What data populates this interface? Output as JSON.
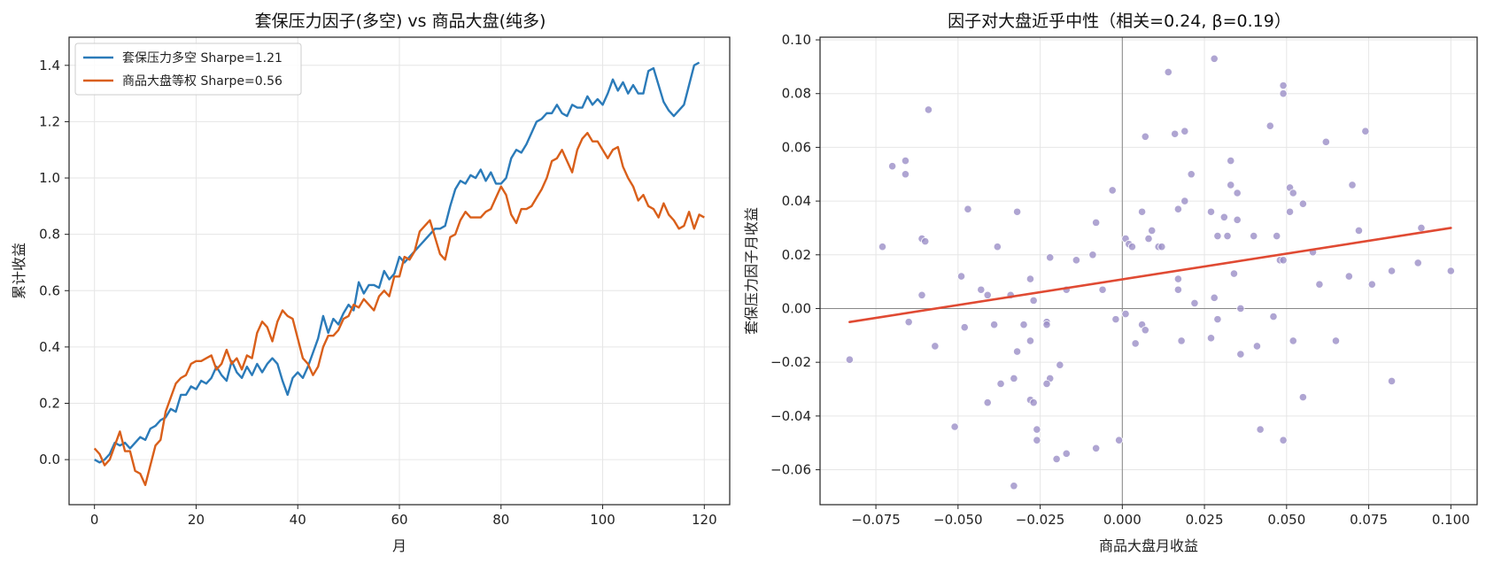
{
  "chart_data": [
    {
      "type": "line",
      "title": "套保压力因子(多空) vs 商品大盘(纯多)",
      "xlabel": "月",
      "ylabel": "累计收益",
      "xlim": [
        -5,
        125
      ],
      "ylim": [
        -0.16,
        1.5
      ],
      "xticks": [
        0,
        20,
        40,
        60,
        80,
        100,
        120
      ],
      "yticks": [
        0.0,
        0.2,
        0.4,
        0.6,
        0.8,
        1.0,
        1.2,
        1.4
      ],
      "ytick_labels": [
        "0.0",
        "0.2",
        "0.4",
        "0.6",
        "0.8",
        "1.0",
        "1.2",
        "1.4"
      ],
      "grid": true,
      "legend_position": "top-left",
      "series": [
        {
          "name": "套保压力多空 Sharpe=1.21",
          "color": "#2b7bb9",
          "values": [
            0.0,
            -0.01,
            0.0,
            0.02,
            0.06,
            0.05,
            0.06,
            0.04,
            0.06,
            0.08,
            0.07,
            0.11,
            0.12,
            0.14,
            0.15,
            0.18,
            0.17,
            0.23,
            0.23,
            0.26,
            0.25,
            0.28,
            0.27,
            0.29,
            0.33,
            0.3,
            0.28,
            0.35,
            0.31,
            0.29,
            0.33,
            0.3,
            0.34,
            0.31,
            0.34,
            0.36,
            0.34,
            0.28,
            0.23,
            0.29,
            0.31,
            0.29,
            0.33,
            0.38,
            0.43,
            0.51,
            0.45,
            0.5,
            0.48,
            0.52,
            0.55,
            0.53,
            0.63,
            0.59,
            0.62,
            0.62,
            0.61,
            0.67,
            0.64,
            0.66,
            0.72,
            0.7,
            0.72,
            0.74,
            0.76,
            0.78,
            0.8,
            0.82,
            0.82,
            0.83,
            0.9,
            0.96,
            0.99,
            0.98,
            1.01,
            1.0,
            1.03,
            0.99,
            1.02,
            0.98,
            0.98,
            1.0,
            1.07,
            1.1,
            1.09,
            1.12,
            1.16,
            1.2,
            1.21,
            1.23,
            1.23,
            1.26,
            1.23,
            1.22,
            1.26,
            1.25,
            1.25,
            1.29,
            1.26,
            1.28,
            1.26,
            1.3,
            1.35,
            1.31,
            1.34,
            1.3,
            1.33,
            1.3,
            1.3,
            1.38,
            1.39,
            1.33,
            1.27,
            1.24,
            1.22,
            1.24,
            1.26,
            1.33,
            1.4,
            1.41
          ]
        },
        {
          "name": "商品大盘等权 Sharpe=0.56",
          "color": "#d95f1a",
          "values": [
            0.04,
            0.02,
            -0.02,
            0.0,
            0.05,
            0.1,
            0.03,
            0.03,
            -0.04,
            -0.05,
            -0.09,
            -0.02,
            0.05,
            0.07,
            0.17,
            0.22,
            0.27,
            0.29,
            0.3,
            0.34,
            0.35,
            0.35,
            0.36,
            0.37,
            0.32,
            0.34,
            0.39,
            0.34,
            0.36,
            0.32,
            0.37,
            0.36,
            0.45,
            0.49,
            0.47,
            0.42,
            0.49,
            0.53,
            0.51,
            0.5,
            0.43,
            0.36,
            0.34,
            0.3,
            0.33,
            0.4,
            0.44,
            0.44,
            0.46,
            0.5,
            0.51,
            0.55,
            0.54,
            0.57,
            0.55,
            0.53,
            0.58,
            0.6,
            0.58,
            0.65,
            0.65,
            0.72,
            0.71,
            0.74,
            0.81,
            0.83,
            0.85,
            0.79,
            0.73,
            0.71,
            0.79,
            0.8,
            0.85,
            0.88,
            0.86,
            0.86,
            0.86,
            0.88,
            0.89,
            0.93,
            0.97,
            0.94,
            0.87,
            0.84,
            0.89,
            0.89,
            0.9,
            0.93,
            0.96,
            1.0,
            1.06,
            1.07,
            1.1,
            1.06,
            1.02,
            1.1,
            1.14,
            1.16,
            1.13,
            1.13,
            1.1,
            1.07,
            1.1,
            1.11,
            1.04,
            1.0,
            0.97,
            0.92,
            0.94,
            0.9,
            0.89,
            0.86,
            0.91,
            0.87,
            0.85,
            0.82,
            0.83,
            0.88,
            0.82,
            0.87,
            0.86
          ]
        }
      ]
    },
    {
      "type": "scatter",
      "title": "因子对大盘近乎中性（相关=0.24, β=0.19）",
      "xlabel": "商品大盘月收益",
      "ylabel": "套保压力因子月收益",
      "xlim": [
        -0.092,
        0.108
      ],
      "ylim": [
        -0.073,
        0.101
      ],
      "xticks": [
        -0.075,
        -0.05,
        -0.025,
        0.0,
        0.025,
        0.05,
        0.075,
        0.1
      ],
      "xtick_labels": [
        "−0.075",
        "−0.050",
        "−0.025",
        "0.000",
        "0.025",
        "0.050",
        "0.075",
        "0.100"
      ],
      "yticks": [
        -0.06,
        -0.04,
        -0.02,
        0.0,
        0.02,
        0.04,
        0.06,
        0.08,
        0.1
      ],
      "ytick_labels": [
        "−0.06",
        "−0.04",
        "−0.02",
        "0.00",
        "0.02",
        "0.04",
        "0.06",
        "0.08",
        "0.10"
      ],
      "grid": true,
      "point_color": "#9b8ec7",
      "fit_color": "#e04a33",
      "fit_line": {
        "x": [
          -0.083,
          0.1
        ],
        "y": [
          -0.005,
          0.03
        ]
      },
      "points": [
        [
          -0.083,
          -0.019
        ],
        [
          -0.073,
          0.023
        ],
        [
          -0.07,
          0.053
        ],
        [
          -0.066,
          0.055
        ],
        [
          -0.066,
          0.05
        ],
        [
          -0.065,
          -0.005
        ],
        [
          -0.061,
          0.026
        ],
        [
          -0.061,
          0.005
        ],
        [
          -0.06,
          0.025
        ],
        [
          -0.059,
          0.074
        ],
        [
          -0.057,
          -0.014
        ],
        [
          -0.051,
          -0.044
        ],
        [
          -0.049,
          0.012
        ],
        [
          -0.048,
          -0.007
        ],
        [
          -0.047,
          0.037
        ],
        [
          -0.043,
          0.007
        ],
        [
          -0.041,
          0.005
        ],
        [
          -0.041,
          -0.035
        ],
        [
          -0.039,
          -0.006
        ],
        [
          -0.038,
          0.023
        ],
        [
          -0.037,
          -0.028
        ],
        [
          -0.034,
          0.005
        ],
        [
          -0.033,
          -0.066
        ],
        [
          -0.033,
          -0.026
        ],
        [
          -0.032,
          0.036
        ],
        [
          -0.032,
          -0.016
        ],
        [
          -0.03,
          -0.006
        ],
        [
          -0.028,
          0.011
        ],
        [
          -0.028,
          -0.034
        ],
        [
          -0.028,
          -0.012
        ],
        [
          -0.027,
          -0.035
        ],
        [
          -0.027,
          0.003
        ],
        [
          -0.026,
          -0.045
        ],
        [
          -0.026,
          -0.049
        ],
        [
          -0.023,
          -0.005
        ],
        [
          -0.023,
          -0.006
        ],
        [
          -0.022,
          -0.026
        ],
        [
          -0.023,
          -0.028
        ],
        [
          -0.022,
          0.019
        ],
        [
          -0.02,
          -0.056
        ],
        [
          -0.019,
          -0.021
        ],
        [
          -0.017,
          -0.054
        ],
        [
          -0.017,
          0.007
        ],
        [
          -0.014,
          0.018
        ],
        [
          -0.009,
          0.02
        ],
        [
          -0.008,
          0.032
        ],
        [
          -0.008,
          -0.052
        ],
        [
          -0.006,
          0.007
        ],
        [
          -0.003,
          0.044
        ],
        [
          -0.002,
          -0.004
        ],
        [
          -0.001,
          -0.049
        ],
        [
          0.001,
          0.026
        ],
        [
          0.001,
          -0.002
        ],
        [
          0.002,
          0.024
        ],
        [
          0.003,
          0.023
        ],
        [
          0.004,
          -0.013
        ],
        [
          0.006,
          0.036
        ],
        [
          0.006,
          -0.006
        ],
        [
          0.007,
          0.064
        ],
        [
          0.007,
          -0.008
        ],
        [
          0.008,
          0.026
        ],
        [
          0.009,
          0.029
        ],
        [
          0.011,
          0.023
        ],
        [
          0.012,
          0.023
        ],
        [
          0.014,
          0.088
        ],
        [
          0.016,
          0.065
        ],
        [
          0.017,
          0.037
        ],
        [
          0.017,
          0.011
        ],
        [
          0.017,
          0.007
        ],
        [
          0.018,
          -0.012
        ],
        [
          0.019,
          0.066
        ],
        [
          0.019,
          0.04
        ],
        [
          0.021,
          0.05
        ],
        [
          0.022,
          0.002
        ],
        [
          0.027,
          0.036
        ],
        [
          0.027,
          -0.011
        ],
        [
          0.028,
          0.093
        ],
        [
          0.028,
          0.004
        ],
        [
          0.029,
          0.027
        ],
        [
          0.029,
          -0.004
        ],
        [
          0.031,
          0.034
        ],
        [
          0.032,
          0.027
        ],
        [
          0.033,
          0.055
        ],
        [
          0.033,
          0.046
        ],
        [
          0.034,
          0.013
        ],
        [
          0.035,
          0.043
        ],
        [
          0.035,
          0.033
        ],
        [
          0.036,
          -0.017
        ],
        [
          0.036,
          0.0
        ],
        [
          0.04,
          0.027
        ],
        [
          0.041,
          -0.014
        ],
        [
          0.042,
          -0.045
        ],
        [
          0.045,
          0.068
        ],
        [
          0.046,
          -0.003
        ],
        [
          0.047,
          0.027
        ],
        [
          0.048,
          0.018
        ],
        [
          0.049,
          -0.049
        ],
        [
          0.049,
          0.08
        ],
        [
          0.049,
          0.083
        ],
        [
          0.049,
          0.018
        ],
        [
          0.051,
          0.036
        ],
        [
          0.051,
          0.045
        ],
        [
          0.052,
          0.043
        ],
        [
          0.052,
          -0.012
        ],
        [
          0.055,
          -0.033
        ],
        [
          0.055,
          0.039
        ],
        [
          0.058,
          0.021
        ],
        [
          0.06,
          0.009
        ],
        [
          0.062,
          0.062
        ],
        [
          0.065,
          -0.012
        ],
        [
          0.069,
          0.012
        ],
        [
          0.07,
          0.046
        ],
        [
          0.072,
          0.029
        ],
        [
          0.074,
          0.066
        ],
        [
          0.076,
          0.009
        ],
        [
          0.082,
          -0.027
        ],
        [
          0.082,
          0.014
        ],
        [
          0.09,
          0.017
        ],
        [
          0.091,
          0.03
        ],
        [
          0.1,
          0.014
        ]
      ]
    }
  ]
}
